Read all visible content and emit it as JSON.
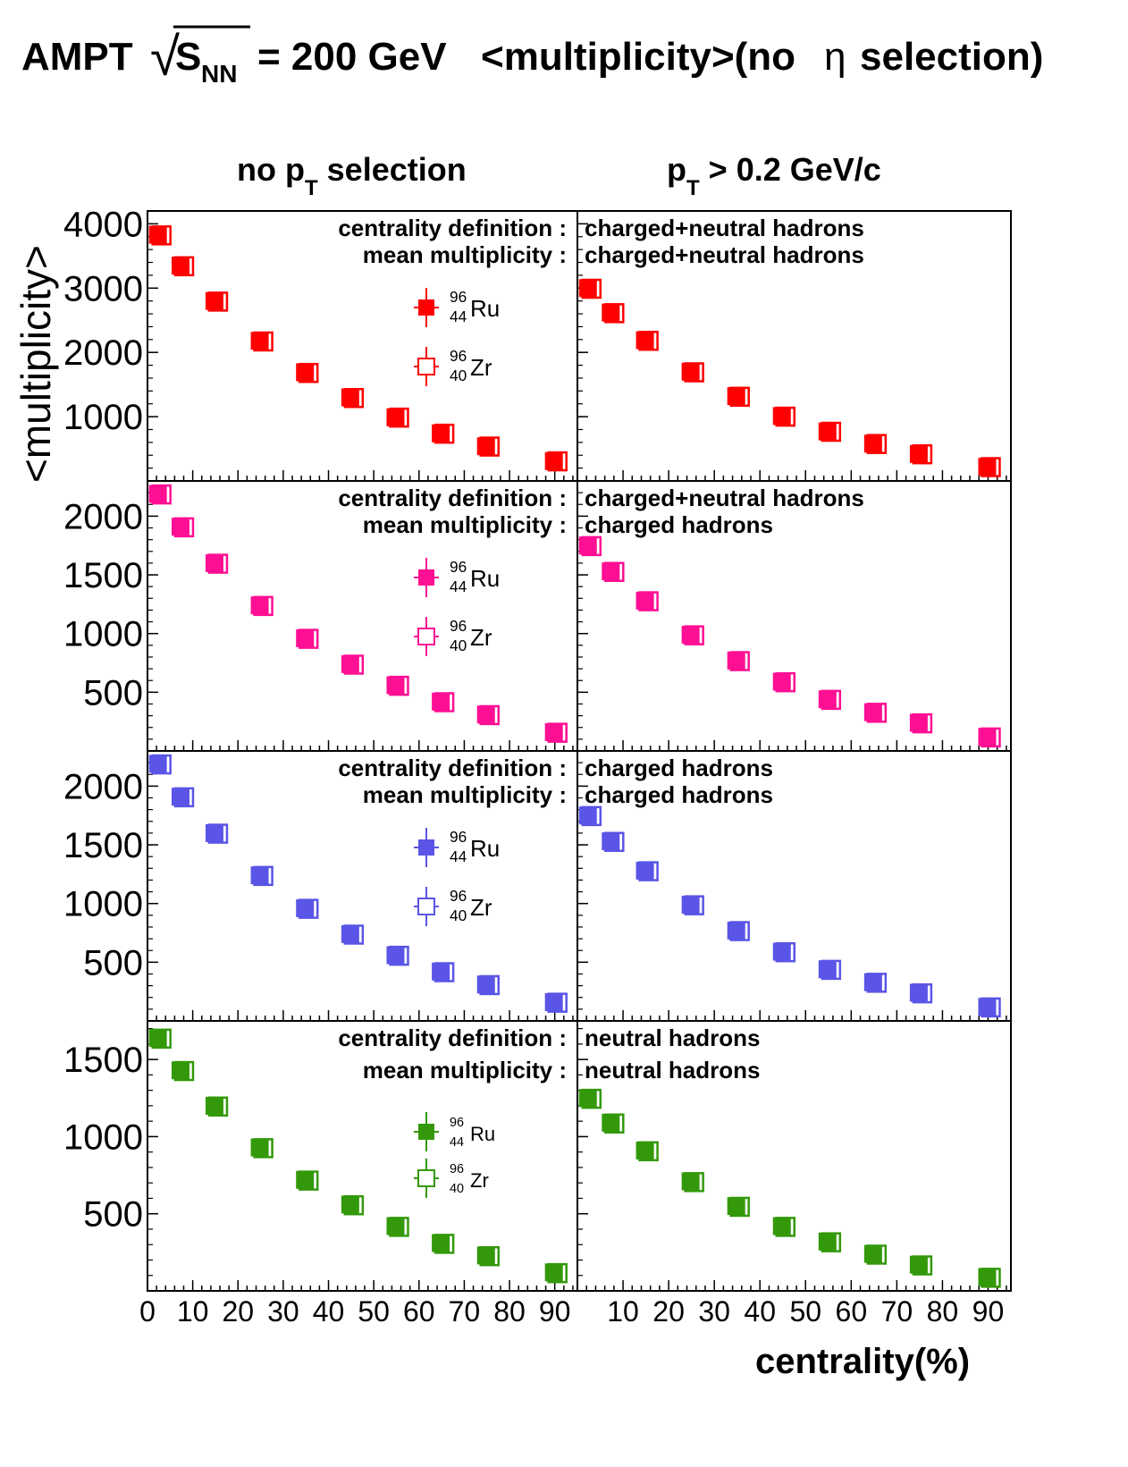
{
  "title": {
    "prefix": "AMPT",
    "sqrt_symbol": "√",
    "s": "S",
    "nn": "NN",
    "energy": "= 200 GeV",
    "observable": "<multiplicity>(no",
    "eta": "η",
    "suffix": "selection)"
  },
  "column_titles": [
    {
      "main": "no p",
      "sub": "T",
      "rest": " selection"
    },
    {
      "main": "p",
      "sub": "T",
      "rest": " > 0.2 GeV/c"
    }
  ],
  "ylabel": "<multiplicity>",
  "xlabel": "centrality(%)",
  "x_ticks_left": [
    "0",
    "10",
    "20",
    "30",
    "40",
    "50",
    "60",
    "70",
    "80",
    "90"
  ],
  "x_ticks_right": [
    "10",
    "20",
    "30",
    "40",
    "50",
    "60",
    "70",
    "80",
    "90"
  ],
  "info_labels": {
    "centrality": "centrality definition :",
    "mean": "mean multiplicity :"
  },
  "legend_entries": [
    {
      "mass": "96",
      "charge": "44",
      "symbol": "Ru",
      "marker": "filled square"
    },
    {
      "mass": "96",
      "charge": "40",
      "symbol": "Zr",
      "marker": "open square"
    }
  ],
  "colors": {
    "red": "#ff0000",
    "pink": "#ff0f93",
    "blue": "#5a55e6",
    "green": "#33990a",
    "axis": "#000000"
  },
  "chart_data": [
    {
      "type": "scatter",
      "row": 1,
      "color_key": "red",
      "xlim": [
        0,
        95
      ],
      "ylim": [
        0,
        4200
      ],
      "yticks": [
        1000,
        2000,
        3000,
        4000
      ],
      "ytick_labels": [
        "1000",
        "2000",
        "3000",
        "4000"
      ],
      "centrality_definition": "charged+neutral hadrons",
      "mean_multiplicity": "charged+neutral hadrons",
      "panels": [
        {
          "pt_cut": "no pT selection",
          "x": [
            2.5,
            7.5,
            15,
            25,
            35,
            45,
            55,
            65,
            75,
            90
          ],
          "series": [
            {
              "name": "96/44 Ru",
              "values": [
                3830,
                3350,
                2800,
                2180,
                1690,
                1300,
                990,
                740,
                540,
                310
              ]
            },
            {
              "name": "96/40 Zr",
              "values": [
                3820,
                3340,
                2790,
                2170,
                1680,
                1290,
                985,
                735,
                535,
                305
              ]
            }
          ]
        },
        {
          "pt_cut": "pT > 0.2 GeV/c",
          "x": [
            2.5,
            7.5,
            15,
            25,
            35,
            45,
            55,
            65,
            75,
            90
          ],
          "series": [
            {
              "name": "96/44 Ru",
              "values": [
                3000,
                2620,
                2190,
                1700,
                1320,
                1010,
                770,
                580,
                420,
                220
              ]
            },
            {
              "name": "96/40 Zr",
              "values": [
                2990,
                2610,
                2180,
                1690,
                1310,
                1000,
                765,
                575,
                415,
                215
              ]
            }
          ]
        }
      ]
    },
    {
      "type": "scatter",
      "row": 2,
      "color_key": "pink",
      "xlim": [
        0,
        95
      ],
      "ylim": [
        0,
        2300
      ],
      "yticks": [
        500,
        1000,
        1500,
        2000
      ],
      "ytick_labels": [
        "500",
        "1000",
        "1500",
        "2000"
      ],
      "centrality_definition": "charged+neutral hadrons",
      "mean_multiplicity": "charged hadrons",
      "panels": [
        {
          "pt_cut": "no pT selection",
          "x": [
            2.5,
            7.5,
            15,
            25,
            35,
            45,
            55,
            65,
            75,
            90
          ],
          "series": [
            {
              "name": "96/44 Ru",
              "values": [
                2190,
                1910,
                1600,
                1240,
                960,
                740,
                560,
                420,
                310,
                160
              ]
            },
            {
              "name": "96/40 Zr",
              "values": [
                2185,
                1905,
                1595,
                1235,
                955,
                735,
                555,
                415,
                305,
                155
              ]
            }
          ]
        },
        {
          "pt_cut": "pT > 0.2 GeV/c",
          "x": [
            2.5,
            7.5,
            15,
            25,
            35,
            45,
            55,
            65,
            75,
            90
          ],
          "series": [
            {
              "name": "96/44 Ru",
              "values": [
                1750,
                1530,
                1280,
                990,
                770,
                590,
                440,
                330,
                240,
                120
              ]
            },
            {
              "name": "96/40 Zr",
              "values": [
                1745,
                1525,
                1275,
                985,
                765,
                585,
                435,
                325,
                235,
                115
              ]
            }
          ]
        }
      ]
    },
    {
      "type": "scatter",
      "row": 3,
      "color_key": "blue",
      "xlim": [
        0,
        95
      ],
      "ylim": [
        0,
        2300
      ],
      "yticks": [
        500,
        1000,
        1500,
        2000
      ],
      "ytick_labels": [
        "500",
        "1000",
        "1500",
        "2000"
      ],
      "centrality_definition": "charged hadrons",
      "mean_multiplicity": "charged hadrons",
      "panels": [
        {
          "pt_cut": "no pT selection",
          "x": [
            2.5,
            7.5,
            15,
            25,
            35,
            45,
            55,
            65,
            75,
            90
          ],
          "series": [
            {
              "name": "96/44 Ru",
              "values": [
                2190,
                1910,
                1600,
                1240,
                960,
                740,
                560,
                420,
                310,
                160
              ]
            },
            {
              "name": "96/40 Zr",
              "values": [
                2185,
                1905,
                1595,
                1235,
                955,
                735,
                555,
                415,
                305,
                155
              ]
            }
          ]
        },
        {
          "pt_cut": "pT > 0.2 GeV/c",
          "x": [
            2.5,
            7.5,
            15,
            25,
            35,
            45,
            55,
            65,
            75,
            90
          ],
          "series": [
            {
              "name": "96/44 Ru",
              "values": [
                1750,
                1530,
                1280,
                990,
                770,
                590,
                440,
                330,
                240,
                120
              ]
            },
            {
              "name": "96/40 Zr",
              "values": [
                1745,
                1525,
                1275,
                985,
                765,
                585,
                435,
                325,
                235,
                115
              ]
            }
          ]
        }
      ]
    },
    {
      "type": "scatter",
      "row": 4,
      "color_key": "green",
      "xlim": [
        0,
        95
      ],
      "ylim": [
        0,
        1750
      ],
      "yticks": [
        500,
        1000,
        1500
      ],
      "ytick_labels": [
        "500",
        "1000",
        "1500"
      ],
      "centrality_definition": "neutral hadrons",
      "mean_multiplicity": "neutral hadrons",
      "panels": [
        {
          "pt_cut": "no pT selection",
          "x": [
            2.5,
            7.5,
            15,
            25,
            35,
            45,
            55,
            65,
            75,
            90
          ],
          "series": [
            {
              "name": "96/44 Ru",
              "values": [
                1640,
                1430,
                1200,
                930,
                720,
                560,
                420,
                310,
                230,
                120
              ]
            },
            {
              "name": "96/40 Zr",
              "values": [
                1635,
                1425,
                1195,
                925,
                715,
                555,
                415,
                305,
                225,
                115
              ]
            }
          ]
        },
        {
          "pt_cut": "pT > 0.2 GeV/c",
          "x": [
            2.5,
            7.5,
            15,
            25,
            35,
            45,
            55,
            65,
            75,
            90
          ],
          "series": [
            {
              "name": "96/44 Ru",
              "values": [
                1250,
                1090,
                910,
                710,
                550,
                420,
                320,
                240,
                170,
                90
              ]
            },
            {
              "name": "96/40 Zr",
              "values": [
                1245,
                1085,
                905,
                705,
                545,
                415,
                315,
                235,
                165,
                85
              ]
            }
          ]
        }
      ]
    }
  ]
}
